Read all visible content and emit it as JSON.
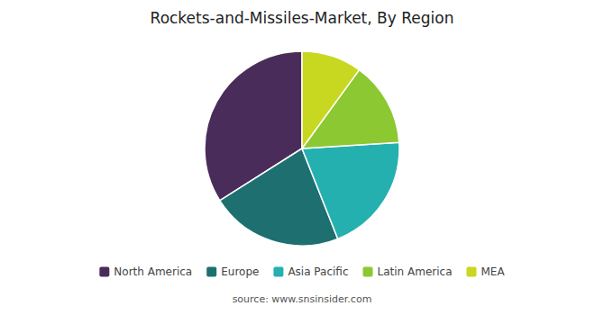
{
  "chart_data": {
    "type": "pie",
    "title": "Rockets-and-Missiles-Market, By Region",
    "source": "source: www.snsinsider.com",
    "categories": [
      "North America",
      "Europe",
      "Asia Pacific",
      "Latin America",
      "MEA"
    ],
    "values": [
      34,
      22,
      20,
      14,
      10
    ],
    "colors": [
      "#4a2c5a",
      "#1e7070",
      "#25b0b0",
      "#8cc832",
      "#c8d820"
    ],
    "legend": "bottom"
  }
}
